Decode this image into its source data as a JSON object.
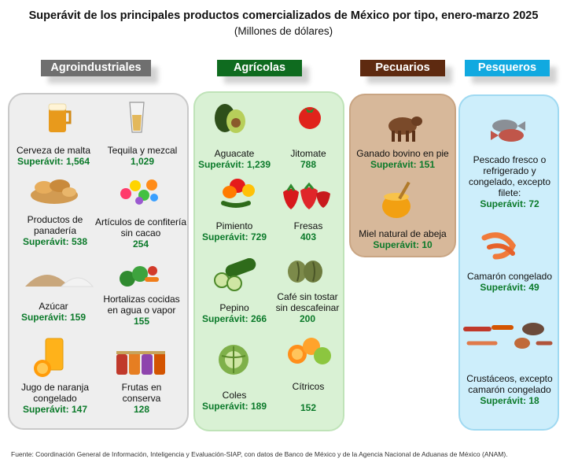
{
  "title": "Superávit de los principales productos comercializados de México por tipo, enero-marzo 2025",
  "subtitle": "(Millones de dólares)",
  "colors": {
    "agro": "#6f6f6f",
    "agri": "#0f6b1f",
    "pec": "#5e2a10",
    "pes": "#11a9e0",
    "agro_bg": "#eeeeee",
    "agri_bg": "#d9f1d4",
    "pec_bg": "#d7b89a",
    "pes_bg": "#cdeefb",
    "value_green": "#0b7a2a"
  },
  "categories": {
    "agro": {
      "header": "Agroindustriales",
      "items": [
        {
          "label": "Cerveza de malta",
          "value": "Superávit: 1,564",
          "icon": "beer-glass-icon"
        },
        {
          "label": "Tequila y mezcal",
          "value": "1,029",
          "icon": "shot-glass-icon"
        },
        {
          "label": "Productos de panadería",
          "value": "Superávit: 538",
          "icon": "bread-basket-icon"
        },
        {
          "label": "Artículos de confitería sin cacao",
          "value": "254",
          "icon": "candy-icon"
        },
        {
          "label": "Azúcar",
          "value": "Superávit: 159",
          "icon": "sugar-pile-icon"
        },
        {
          "label": "Hortalizas cocidas en agua o vapor",
          "value": "155",
          "icon": "vegetables-icon"
        },
        {
          "label": "Jugo de naranja congelado",
          "value": "Superávit: 147",
          "icon": "orange-juice-icon"
        },
        {
          "label": "Frutas en conserva",
          "value": "128",
          "icon": "jars-icon"
        }
      ]
    },
    "agri": {
      "header": "Agrícolas",
      "items": [
        {
          "label": "Aguacate",
          "value": "Superávit: 1,239",
          "icon": "avocado-icon"
        },
        {
          "label": "Jitomate",
          "value": "788",
          "icon": "tomato-icon"
        },
        {
          "label": "Pimiento",
          "value": "Superávit: 729",
          "icon": "peppers-icon"
        },
        {
          "label": "Fresas",
          "value": "403",
          "icon": "strawberries-icon"
        },
        {
          "label": "Pepino",
          "value": "Superávit: 266",
          "icon": "cucumber-icon"
        },
        {
          "label": "Café sin tostar sin descafeinar",
          "value": "200",
          "icon": "coffee-beans-icon"
        },
        {
          "label": "Coles",
          "value": "Superávit: 189",
          "icon": "cabbage-icon"
        },
        {
          "label": "Cítricos",
          "value": "152",
          "icon": "citrus-icon"
        }
      ]
    },
    "pec": {
      "header": "Pecuarios",
      "items": [
        {
          "label": "Ganado bovino en pie",
          "value": "Superávit: 151",
          "icon": "cow-icon"
        },
        {
          "label": "Miel natural de abeja",
          "value": "Superávit: 10",
          "icon": "honey-icon"
        }
      ]
    },
    "pes": {
      "header": "Pesqueros",
      "items": [
        {
          "label": "Pescado fresco o refrigerado y congelado, excepto filete:",
          "value": "Superávit: 72",
          "icon": "fish-icon"
        },
        {
          "label": "Camarón congelado",
          "value": "Superávit: 49",
          "icon": "shrimp-icon"
        },
        {
          "label": "Crustáceos, excepto camarón congelado",
          "value": "Superávit: 18",
          "icon": "crustaceans-icon"
        }
      ]
    }
  },
  "source": "Fuente: Coordinación General de Información, Inteligencia y Evaluación-SIAP, con datos de Banco de México y de la Agencia Nacional de Aduanas de México (ANAM)."
}
